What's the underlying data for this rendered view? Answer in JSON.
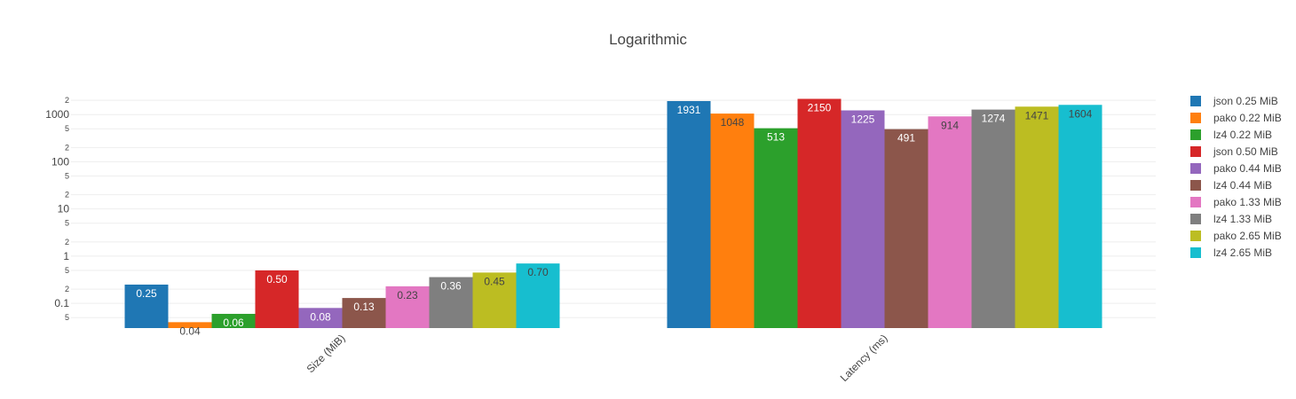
{
  "chart_data": {
    "type": "bar",
    "title": "Logarithmic",
    "y_scale": "log",
    "ylim": [
      0.03,
      2500
    ],
    "grid": true,
    "legend_position": "right",
    "categories": [
      "Size (MiB)",
      "Latency (ms)"
    ],
    "y_major_ticks": [
      {
        "value": 0.1,
        "label": "0.1"
      },
      {
        "value": 1,
        "label": "1"
      },
      {
        "value": 10,
        "label": "10"
      },
      {
        "value": 100,
        "label": "100"
      },
      {
        "value": 1000,
        "label": "1000"
      }
    ],
    "y_minor_ticks": [
      {
        "value": 0.05,
        "label": "5"
      },
      {
        "value": 0.2,
        "label": "2"
      },
      {
        "value": 0.5,
        "label": "5"
      },
      {
        "value": 2,
        "label": "2"
      },
      {
        "value": 5,
        "label": "5"
      },
      {
        "value": 20,
        "label": "2"
      },
      {
        "value": 50,
        "label": "5"
      },
      {
        "value": 200,
        "label": "2"
      },
      {
        "value": 500,
        "label": "5"
      },
      {
        "value": 2000,
        "label": "2"
      }
    ],
    "series": [
      {
        "name": "json 0.25 MiB",
        "color": "#1f77b4",
        "values": [
          0.25,
          1931
        ],
        "labels": [
          "0.25",
          "1931"
        ]
      },
      {
        "name": "pako 0.22 MiB",
        "color": "#ff7f0e",
        "values": [
          0.04,
          1048
        ],
        "labels": [
          "0.04",
          "1048"
        ]
      },
      {
        "name": "lz4 0.22 MiB",
        "color": "#2ca02c",
        "values": [
          0.06,
          513
        ],
        "labels": [
          "0.06",
          "513"
        ]
      },
      {
        "name": "json 0.50 MiB",
        "color": "#d62728",
        "values": [
          0.5,
          2150
        ],
        "labels": [
          "0.50",
          "2150"
        ]
      },
      {
        "name": "pako 0.44 MiB",
        "color": "#9467bd",
        "values": [
          0.08,
          1225
        ],
        "labels": [
          "0.08",
          "1225"
        ]
      },
      {
        "name": "lz4 0.44 MiB",
        "color": "#8c564b",
        "values": [
          0.13,
          491
        ],
        "labels": [
          "0.13",
          "491"
        ]
      },
      {
        "name": "pako 1.33 MiB",
        "color": "#e377c2",
        "values": [
          0.23,
          914
        ],
        "labels": [
          "0.23",
          "914"
        ]
      },
      {
        "name": "lz4 1.33 MiB",
        "color": "#7f7f7f",
        "values": [
          0.36,
          1274
        ],
        "labels": [
          "0.36",
          "1274"
        ]
      },
      {
        "name": "pako 2.65 MiB",
        "color": "#bcbd22",
        "values": [
          0.45,
          1471
        ],
        "labels": [
          "0.45",
          "1471"
        ]
      },
      {
        "name": "lz4 2.65 MiB",
        "color": "#17becf",
        "values": [
          0.7,
          1604
        ],
        "labels": [
          "0.70",
          "1604"
        ]
      }
    ]
  }
}
